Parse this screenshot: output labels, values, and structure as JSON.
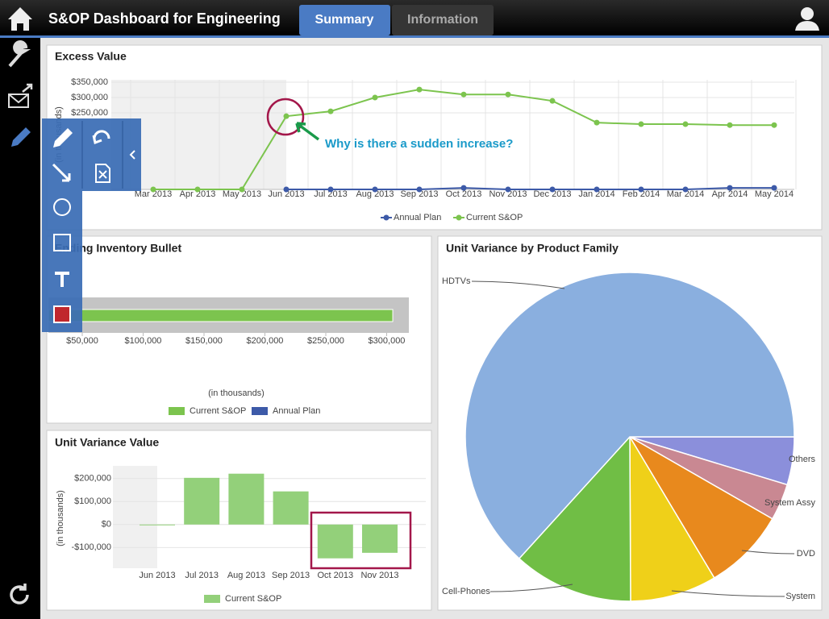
{
  "header": {
    "title": "S&OP Dashboard for Engineering",
    "tabs": [
      "Summary",
      "Information"
    ]
  },
  "annotation": "Why is there a sudden increase?",
  "chart_data": [
    {
      "type": "line",
      "title": "Excess Value",
      "y_label": "(in thousands)",
      "categories": [
        "Mar 2013",
        "Apr 2013",
        "May 2013",
        "Jun 2013",
        "Jul 2013",
        "Aug 2013",
        "Sep 2013",
        "Oct 2013",
        "Nov 2013",
        "Dec 2013",
        "Jan 2014",
        "Feb 2014",
        "Mar 2014",
        "Apr 2014",
        "May 2014"
      ],
      "series": [
        {
          "name": "Annual Plan",
          "color": "#3d5aa8",
          "values": [
            null,
            null,
            null,
            0,
            0,
            0,
            0,
            5000,
            0,
            0,
            0,
            0,
            0,
            5000,
            5000
          ]
        },
        {
          "name": "Current S&OP",
          "color": "#7cc44e",
          "values": [
            0,
            0,
            0,
            239000,
            255000,
            300000,
            326000,
            310000,
            310000,
            289000,
            218000,
            213000,
            213000,
            210000,
            210000
          ]
        }
      ],
      "ylim": [
        0,
        350000
      ],
      "yticks": [
        {
          "value": 250000,
          "label": "$250,000"
        },
        {
          "value": 300000,
          "label": "$300,000"
        },
        {
          "value": 350000,
          "label": "$350,000"
        }
      ],
      "grid": true,
      "legend": "bottom"
    },
    {
      "type": "bullet",
      "title": "Ending Inventory Bullet",
      "x_label": "(in thousands)",
      "series": [
        {
          "name": "Current S&OP",
          "color": "#7cc44e",
          "values": [
            305000
          ]
        },
        {
          "name": "Annual Plan",
          "color": "#3d5aa8",
          "values": [
            null
          ]
        }
      ],
      "xlim": [
        0,
        320000
      ],
      "xticks": [
        {
          "value": 50000,
          "label": "$50,000"
        },
        {
          "value": 100000,
          "label": "$100,000"
        },
        {
          "value": 150000,
          "label": "$150,000"
        },
        {
          "value": 200000,
          "label": "$200,000"
        },
        {
          "value": 250000,
          "label": "$250,000"
        },
        {
          "value": 300000,
          "label": "$300,000"
        }
      ],
      "legend": "bottom"
    },
    {
      "type": "bar",
      "title": "Unit Variance Value",
      "y_label": "(in thousands)",
      "categories": [
        "Jun 2013",
        "Jul 2013",
        "Aug 2013",
        "Sep 2013",
        "Oct 2013",
        "Nov 2013"
      ],
      "series": [
        {
          "name": "Current S&OP",
          "color": "#93d07a",
          "values": [
            0,
            203000,
            221000,
            144000,
            -147000,
            -123000
          ]
        }
      ],
      "ylim": [
        -190000,
        255000
      ],
      "yticks": [
        {
          "value": -100000,
          "label": "-$100,000"
        },
        {
          "value": 0,
          "label": "$0"
        },
        {
          "value": 100000,
          "label": "$100,000"
        },
        {
          "value": 200000,
          "label": "$200,000"
        }
      ],
      "grid": true,
      "legend": "bottom"
    },
    {
      "type": "pie",
      "title": "Unit Variance by Product Family",
      "categories": [
        "Others",
        "System Assy",
        "DVD",
        "System",
        "Cell-Phones",
        "HDTVs"
      ],
      "values": [
        4.7,
        3.6,
        8.1,
        8.5,
        11.8,
        63.2
      ],
      "colors": [
        "#8b8fdb",
        "#c98892",
        "#e8891d",
        "#efd019",
        "#70be45",
        "#8aafdf"
      ]
    }
  ]
}
